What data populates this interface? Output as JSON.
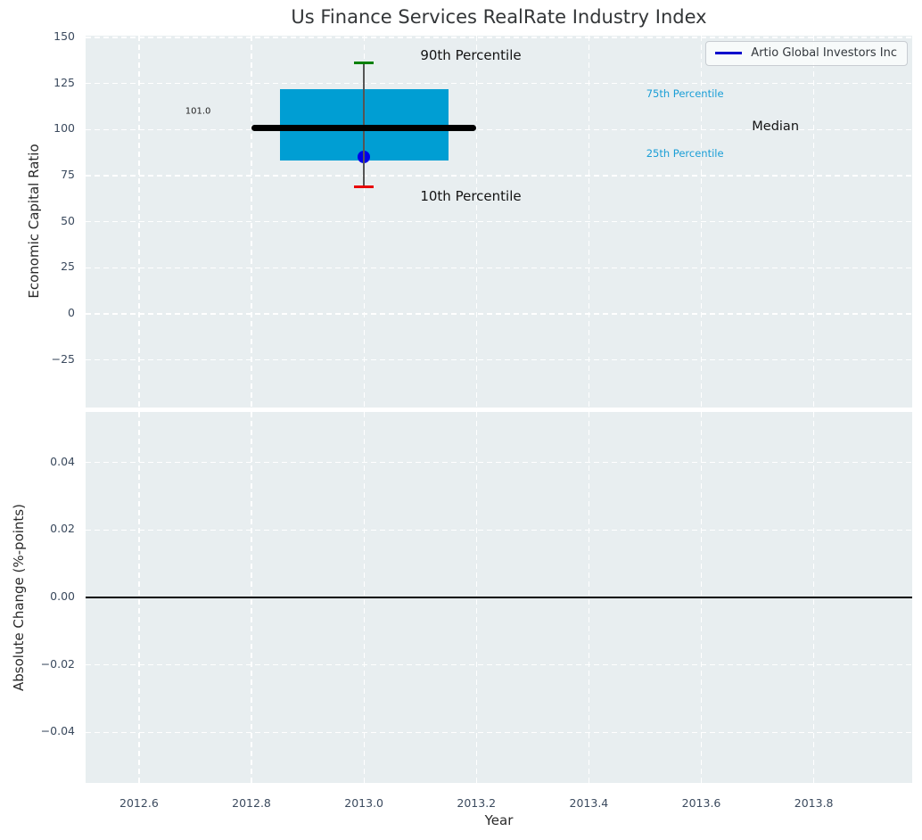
{
  "title": "Us Finance Services RealRate Industry Index",
  "legend": {
    "label": "Artio Global Investors Inc"
  },
  "colors": {
    "panel_bg": "#e8eef0",
    "grid": "#ffffff",
    "box_fill": "#009ed3",
    "median_line": "#000000",
    "whisker": "#555555",
    "cap_90th": "#008000",
    "cap_10th": "#e80000",
    "company_point": "#0000e8",
    "legend_line": "#0000cc",
    "percentile_text": "#1a9ed6",
    "tick_text": "#3b4a5e",
    "zero_line": "#000000"
  },
  "axes": {
    "xlabel": "Year",
    "xlim": [
      2012.505,
      2013.975
    ],
    "xticks": [
      {
        "v": 2012.6,
        "label": "2012.6"
      },
      {
        "v": 2012.8,
        "label": "2012.8"
      },
      {
        "v": 2013.0,
        "label": "2013.0"
      },
      {
        "v": 2013.2,
        "label": "2013.2"
      },
      {
        "v": 2013.4,
        "label": "2013.4"
      },
      {
        "v": 2013.6,
        "label": "2013.6"
      },
      {
        "v": 2013.8,
        "label": "2013.8"
      }
    ]
  },
  "chart_data": [
    {
      "type": "box",
      "panel": "top",
      "title": "Us Finance Services RealRate Industry Index",
      "ylabel": "Economic Capital Ratio",
      "ylim": [
        -50.9,
        151
      ],
      "grid": true,
      "legend_position": "upper right",
      "yticks": [
        {
          "v": 150,
          "label": "150"
        },
        {
          "v": 125,
          "label": "125"
        },
        {
          "v": 100,
          "label": "100"
        },
        {
          "v": 75,
          "label": "75"
        },
        {
          "v": 50,
          "label": "50"
        },
        {
          "v": 25,
          "label": "25"
        },
        {
          "v": 0,
          "label": "0"
        },
        {
          "v": -25,
          "label": "−25"
        }
      ],
      "box": {
        "x_center": 2013.0,
        "x_extent": [
          2012.85,
          2013.15
        ],
        "median_x_extent": [
          2012.8,
          2013.2
        ],
        "p90": 136.0,
        "p75": 122.0,
        "median": 101.0,
        "p25": 83.0,
        "p10": 69.0
      },
      "series": [
        {
          "name": "Artio Global Investors Inc",
          "x": [
            2013.0
          ],
          "y": [
            85.3
          ],
          "marker": "dot"
        }
      ],
      "annotations": [
        {
          "text": "90th Percentile",
          "x": 2013.19,
          "y": 140.3,
          "anchor": "center",
          "colorKey": "annotation_black",
          "color": "#141414",
          "size": 15
        },
        {
          "text": "10th Percentile",
          "x": 2013.19,
          "y": 63.8,
          "anchor": "center",
          "colorKey": "annotation_black",
          "color": "#141414",
          "size": 15
        },
        {
          "text": "75th Percentile",
          "x": 2013.502,
          "y": 119.4,
          "anchor": "left",
          "colorKey": "percentile_text",
          "color": "#1a9ed6",
          "size": 11.5
        },
        {
          "text": "25th Percentile",
          "x": 2013.502,
          "y": 87.0,
          "anchor": "left",
          "colorKey": "percentile_text",
          "color": "#1a9ed6",
          "size": 11.5
        },
        {
          "text": "Median",
          "x": 2013.69,
          "y": 101.5,
          "anchor": "left",
          "colorKey": "annotation_black",
          "color": "#141414",
          "size": 14.5
        },
        {
          "text": "101.0",
          "x": 2012.705,
          "y": 110.0,
          "anchor": "center",
          "colorKey": "annotation_black",
          "color": "#222222",
          "size": 10
        }
      ]
    },
    {
      "type": "line",
      "panel": "bottom",
      "ylabel": "Absolute Change (%-points)",
      "xlabel": "Year",
      "ylim": [
        -0.055,
        0.055
      ],
      "grid": true,
      "yticks": [
        {
          "v": 0.04,
          "label": "0.04"
        },
        {
          "v": 0.02,
          "label": "0.02"
        },
        {
          "v": 0.0,
          "label": "0.00"
        },
        {
          "v": -0.02,
          "label": "−0.02"
        },
        {
          "v": -0.04,
          "label": "−0.04"
        }
      ],
      "zero_line": 0.0,
      "series": []
    }
  ]
}
